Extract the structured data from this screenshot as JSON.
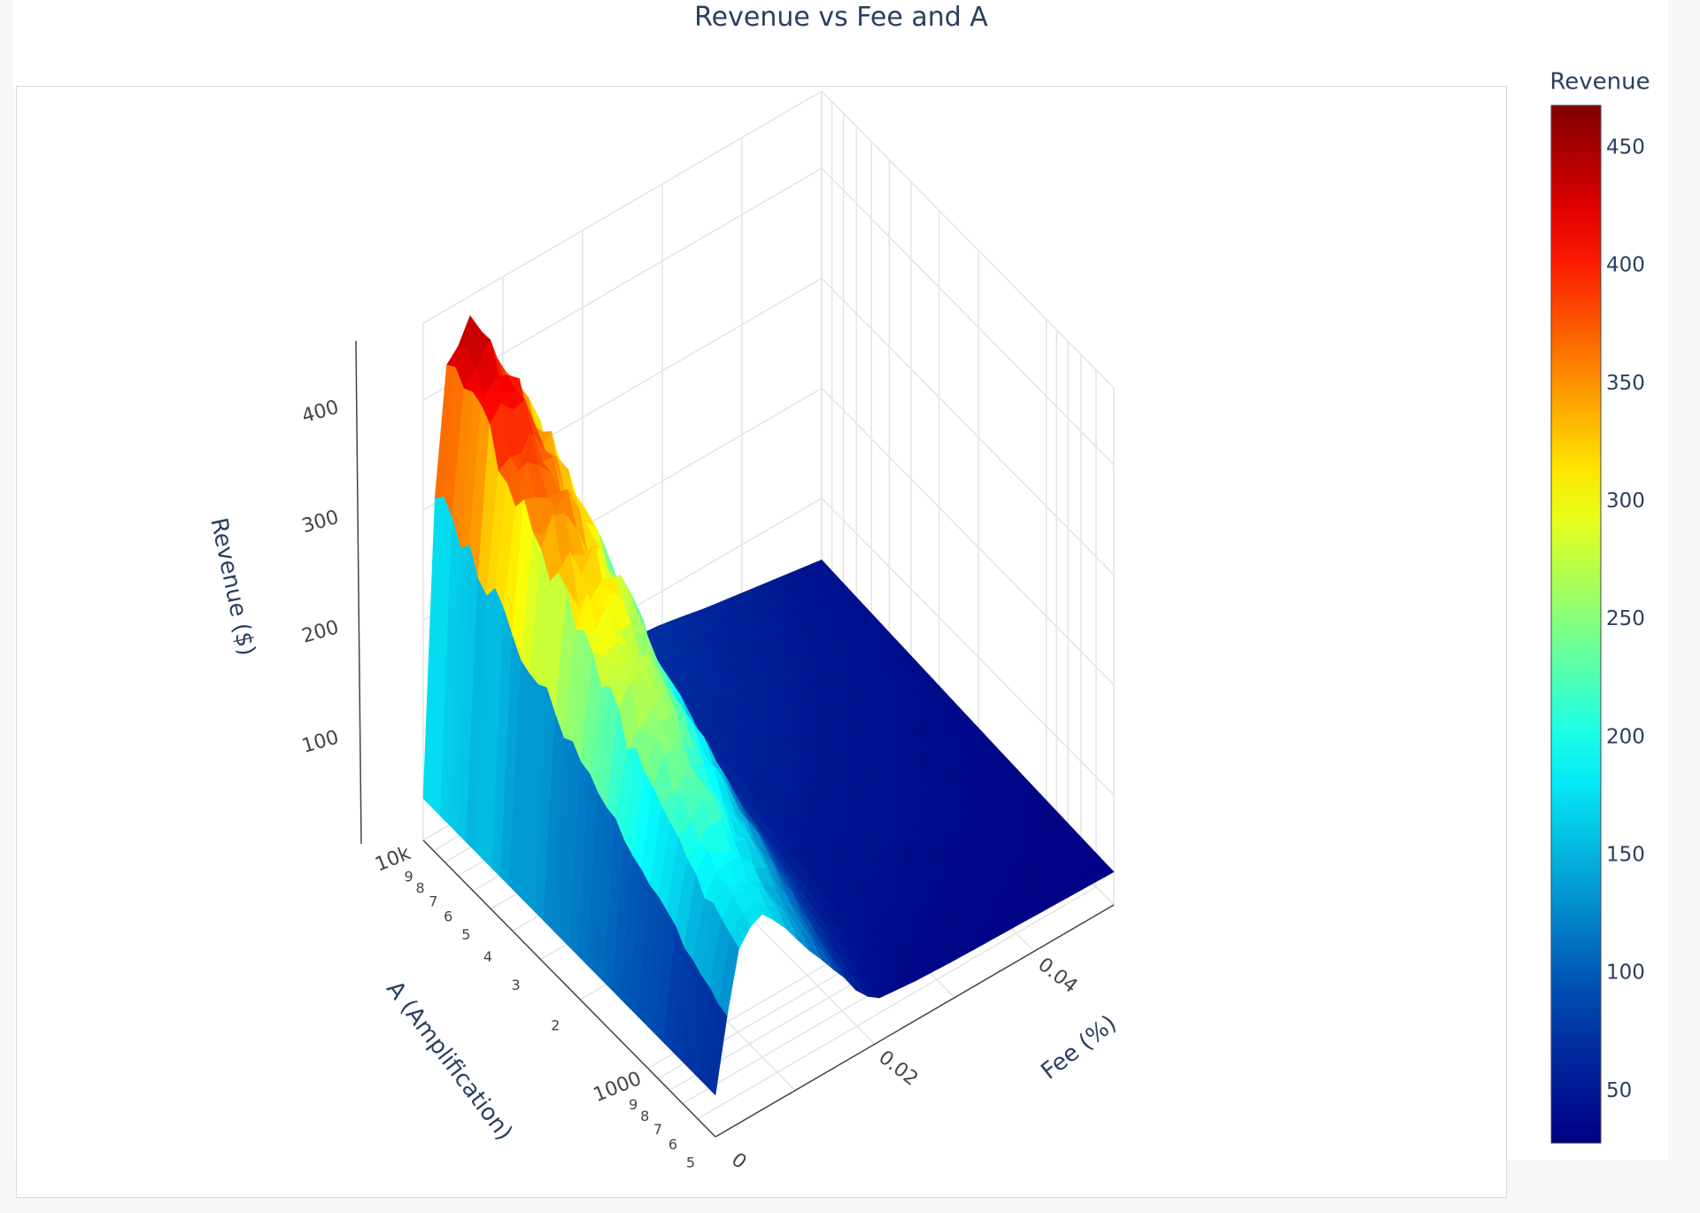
{
  "chart_data": {
    "type": "surface",
    "title": "Revenue vs Fee and A",
    "x_axis": {
      "label": "Fee (%)",
      "ticks": [
        "0",
        "0.02",
        "0.04"
      ],
      "range": [
        0,
        0.05
      ]
    },
    "y_axis": {
      "label": "A (Amplification)",
      "scale": "log",
      "ticks": [
        "5",
        "6",
        "7",
        "8",
        "9",
        "1000",
        "2",
        "3",
        "4",
        "5",
        "6",
        "7",
        "8",
        "9",
        "10k"
      ],
      "range": [
        500,
        10000
      ]
    },
    "z_axis": {
      "label": "Revenue ($)",
      "ticks": [
        "100",
        "200",
        "300",
        "400"
      ],
      "range": [
        0,
        470
      ]
    },
    "colorbar": {
      "title": "Revenue",
      "colorscale": "Jet",
      "ticks": [
        "50",
        "100",
        "150",
        "200",
        "250",
        "300",
        "350",
        "400",
        "450"
      ],
      "range": [
        28,
        468
      ]
    },
    "fee_profile": {
      "fee": [
        0,
        0.0025,
        0.005,
        0.0075,
        0.01,
        0.0125,
        0.015,
        0.0175,
        0.02,
        0.0225,
        0.025,
        0.03,
        0.035,
        0.04,
        0.045,
        0.05
      ],
      "revenue_high_A": [
        150,
        440,
        450,
        440,
        400,
        360,
        300,
        240,
        170,
        95,
        75,
        70,
        62,
        56,
        50,
        44
      ],
      "revenue_low_A": [
        40,
        150,
        175,
        165,
        140,
        115,
        90,
        60,
        40,
        38,
        36,
        34,
        33,
        32,
        31,
        30
      ]
    },
    "grid": true
  }
}
